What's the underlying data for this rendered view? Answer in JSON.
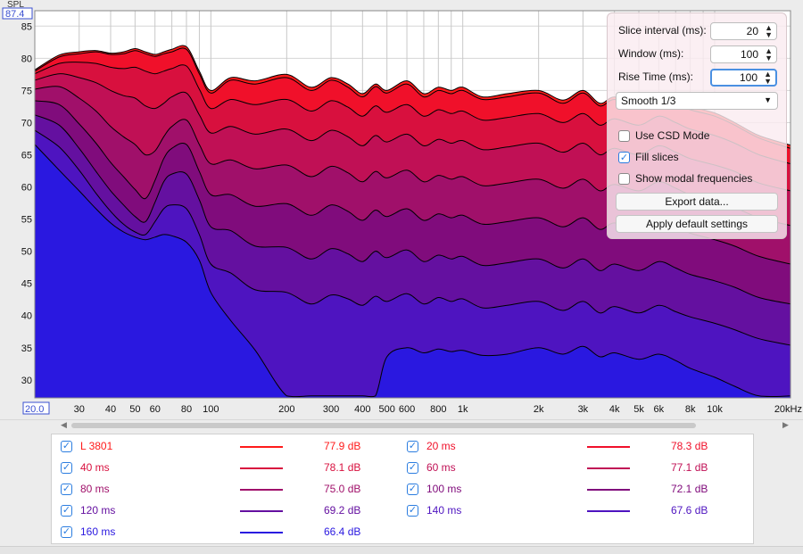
{
  "app": {
    "spl_label": "SPL"
  },
  "chart_data": {
    "type": "area",
    "title": "",
    "xlabel": "",
    "ylabel": "SPL",
    "x_scale": "log",
    "xlim": [
      20,
      20000
    ],
    "ylim": [
      27.2,
      87.4
    ],
    "ylim_label": "87.4",
    "xmin_label": "20.0",
    "y_ticks": [
      "85",
      "80",
      "75",
      "70",
      "65",
      "60",
      "55",
      "50",
      "45",
      "40",
      "35",
      "30"
    ],
    "y_tick_values": [
      85,
      80,
      75,
      70,
      65,
      60,
      55,
      50,
      45,
      40,
      35,
      30
    ],
    "x_ticks": [
      "30",
      "40",
      "50",
      "60",
      "80",
      "100",
      "200",
      "300",
      "400",
      "500",
      "600",
      "800",
      "1k",
      "2k",
      "3k",
      "4k",
      "5k",
      "6k",
      "8k",
      "10k",
      "20kHz"
    ],
    "x_tick_values": [
      30,
      40,
      50,
      60,
      80,
      100,
      200,
      300,
      400,
      500,
      600,
      800,
      1000,
      2000,
      3000,
      4000,
      5000,
      6000,
      8000,
      10000,
      20000
    ],
    "x": [
      20,
      25,
      30,
      35,
      40,
      45,
      50,
      55,
      60,
      65,
      70,
      80,
      90,
      100,
      120,
      150,
      200,
      250,
      300,
      350,
      400,
      450,
      500,
      600,
      700,
      800,
      900,
      1000,
      1200,
      1500,
      2000,
      2500,
      3000,
      3500,
      4000,
      5000,
      6000,
      7000,
      8000,
      10000,
      12000,
      15000,
      20000
    ],
    "series": [
      {
        "name": "L 3801",
        "color": "#ff1a1a",
        "values": [
          78.2,
          80.5,
          81.0,
          81.2,
          80.8,
          81.0,
          81.5,
          81.0,
          80.6,
          81.0,
          81.4,
          81.8,
          78.0,
          75.0,
          77.0,
          76.5,
          77.5,
          75.5,
          77.0,
          76.0,
          74.5,
          76.0,
          75.0,
          76.5,
          74.5,
          75.5,
          75.0,
          75.5,
          74.0,
          74.5,
          75.0,
          73.5,
          75.0,
          73.0,
          74.0,
          73.0,
          74.5,
          73.5,
          72.5,
          71.5,
          70.0,
          68.0,
          66.5
        ]
      },
      {
        "name": "20 ms",
        "color": "#f0102a",
        "values": [
          78.0,
          80.2,
          80.7,
          81.0,
          80.6,
          80.7,
          81.2,
          80.7,
          80.3,
          80.7,
          81.0,
          81.4,
          77.6,
          74.6,
          76.6,
          76.0,
          77.0,
          75.0,
          76.6,
          75.5,
          74.0,
          75.6,
          74.6,
          76.0,
          74.0,
          75.0,
          74.5,
          75.0,
          73.6,
          74.0,
          74.6,
          73.0,
          74.6,
          72.6,
          73.6,
          72.6,
          74.0,
          73.0,
          72.0,
          71.0,
          69.6,
          67.6,
          66.0
        ]
      },
      {
        "name": "40 ms",
        "color": "#d8103e",
        "values": [
          77.6,
          79.2,
          79.4,
          79.2,
          78.6,
          78.4,
          78.6,
          78.0,
          77.6,
          78.0,
          78.4,
          78.8,
          75.2,
          72.2,
          73.6,
          72.8,
          73.6,
          71.8,
          73.4,
          72.4,
          71.0,
          72.6,
          71.6,
          72.8,
          71.0,
          72.0,
          71.4,
          71.8,
          70.4,
          70.8,
          71.4,
          70.0,
          71.4,
          69.6,
          70.6,
          69.6,
          71.0,
          70.0,
          69.0,
          68.0,
          66.8,
          65.0,
          63.6
        ]
      },
      {
        "name": "60 ms",
        "color": "#c01055",
        "values": [
          76.6,
          77.6,
          77.0,
          76.2,
          75.0,
          74.2,
          73.8,
          72.6,
          72.2,
          73.0,
          74.0,
          74.6,
          71.2,
          68.4,
          69.4,
          68.2,
          69.0,
          67.2,
          68.8,
          67.8,
          66.4,
          68.0,
          67.0,
          68.2,
          66.4,
          67.4,
          66.8,
          67.2,
          65.8,
          66.2,
          66.8,
          65.4,
          66.8,
          65.0,
          66.0,
          65.0,
          66.4,
          65.4,
          64.4,
          63.4,
          62.4,
          60.6,
          59.4
        ]
      },
      {
        "name": "80 ms",
        "color": "#a0106a",
        "values": [
          75.2,
          75.6,
          73.8,
          71.8,
          69.4,
          67.8,
          66.6,
          65.0,
          65.6,
          67.8,
          69.4,
          70.4,
          66.6,
          63.6,
          64.2,
          62.8,
          63.4,
          61.6,
          63.2,
          62.2,
          60.8,
          62.4,
          61.4,
          62.6,
          60.8,
          61.8,
          61.2,
          61.6,
          60.2,
          60.6,
          61.2,
          59.8,
          61.2,
          59.4,
          60.4,
          59.4,
          60.8,
          59.8,
          58.8,
          57.8,
          56.8,
          55.2,
          54.0
        ]
      },
      {
        "name": "100 ms",
        "color": "#800c7c",
        "values": [
          73.4,
          72.8,
          69.8,
          66.8,
          63.8,
          61.6,
          59.6,
          58.2,
          61.0,
          64.4,
          66.0,
          66.6,
          62.4,
          58.8,
          58.8,
          57.0,
          57.4,
          55.6,
          57.2,
          56.2,
          54.8,
          56.4,
          55.4,
          56.6,
          54.8,
          55.8,
          55.2,
          55.6,
          54.2,
          54.6,
          55.2,
          53.8,
          55.2,
          53.4,
          54.4,
          53.4,
          54.8,
          53.8,
          52.8,
          51.8,
          50.8,
          49.2,
          48.0
        ]
      },
      {
        "name": "120 ms",
        "color": "#6410a0",
        "values": [
          71.2,
          69.6,
          66.0,
          62.4,
          59.4,
          57.2,
          55.4,
          54.6,
          57.6,
          60.8,
          62.0,
          62.0,
          58.0,
          53.8,
          53.2,
          50.8,
          50.6,
          48.8,
          50.4,
          49.6,
          48.4,
          50.0,
          49.0,
          50.2,
          48.4,
          49.4,
          48.8,
          49.2,
          47.8,
          48.2,
          48.8,
          47.4,
          48.8,
          47.0,
          48.0,
          47.0,
          48.4,
          47.4,
          46.4,
          45.4,
          44.4,
          42.8,
          41.8
        ]
      },
      {
        "name": "140 ms",
        "color": "#4e14c0",
        "values": [
          68.8,
          66.2,
          62.6,
          59.0,
          56.2,
          54.2,
          53.0,
          52.6,
          54.6,
          56.6,
          57.2,
          56.6,
          52.6,
          48.0,
          46.6,
          44.0,
          43.6,
          41.8,
          43.2,
          42.6,
          41.6,
          43.0,
          42.2,
          43.4,
          41.8,
          42.8,
          42.2,
          42.6,
          41.2,
          41.6,
          42.2,
          40.8,
          42.2,
          40.4,
          41.4,
          40.4,
          41.6,
          40.6,
          39.8,
          38.8,
          37.8,
          36.4,
          35.4
        ]
      },
      {
        "name": "160 ms",
        "color": "#2a18e0",
        "values": [
          66.6,
          62.6,
          59.4,
          56.6,
          54.4,
          53.0,
          52.2,
          51.8,
          52.2,
          52.6,
          52.4,
          51.4,
          48.6,
          43.6,
          39.2,
          34.6,
          27.5,
          27.5,
          27.5,
          27.5,
          27.5,
          27.5,
          33.6,
          35.0,
          34.2,
          34.8,
          34.4,
          34.6,
          33.8,
          34.0,
          35.0,
          34.0,
          35.2,
          33.6,
          34.2,
          33.2,
          34.0,
          33.0,
          31.8,
          30.4,
          29.0,
          27.5,
          27.5
        ]
      }
    ]
  },
  "legend": {
    "items": [
      {
        "name": "L 3801",
        "value": "77.9 dB",
        "color": "#ff1a1a"
      },
      {
        "name": "20 ms",
        "value": "78.3 dB",
        "color": "#f0102a"
      },
      {
        "name": "40 ms",
        "value": "78.1 dB",
        "color": "#d8103e"
      },
      {
        "name": "60 ms",
        "value": "77.1 dB",
        "color": "#c01055"
      },
      {
        "name": "80 ms",
        "value": "75.0 dB",
        "color": "#a0106a"
      },
      {
        "name": "100 ms",
        "value": "72.1 dB",
        "color": "#800c7c"
      },
      {
        "name": "120 ms",
        "value": "69.2 dB",
        "color": "#6410a0"
      },
      {
        "name": "140 ms",
        "value": "67.6 dB",
        "color": "#4e14c0"
      },
      {
        "name": "160 ms",
        "value": "66.4 dB",
        "color": "#2a18e0"
      }
    ]
  },
  "panel": {
    "slice_label": "Slice interval (ms):",
    "slice_value": "20",
    "window_label": "Window (ms):",
    "window_value": "100",
    "rise_label": "Rise Time (ms):",
    "rise_value": "100",
    "smoothing": "Smooth 1/3",
    "csd_label": "Use CSD Mode",
    "csd_checked": false,
    "fill_label": "Fill slices",
    "fill_checked": true,
    "modal_label": "Show modal frequencies",
    "modal_checked": false,
    "export_label": "Export data...",
    "defaults_label": "Apply default settings"
  }
}
